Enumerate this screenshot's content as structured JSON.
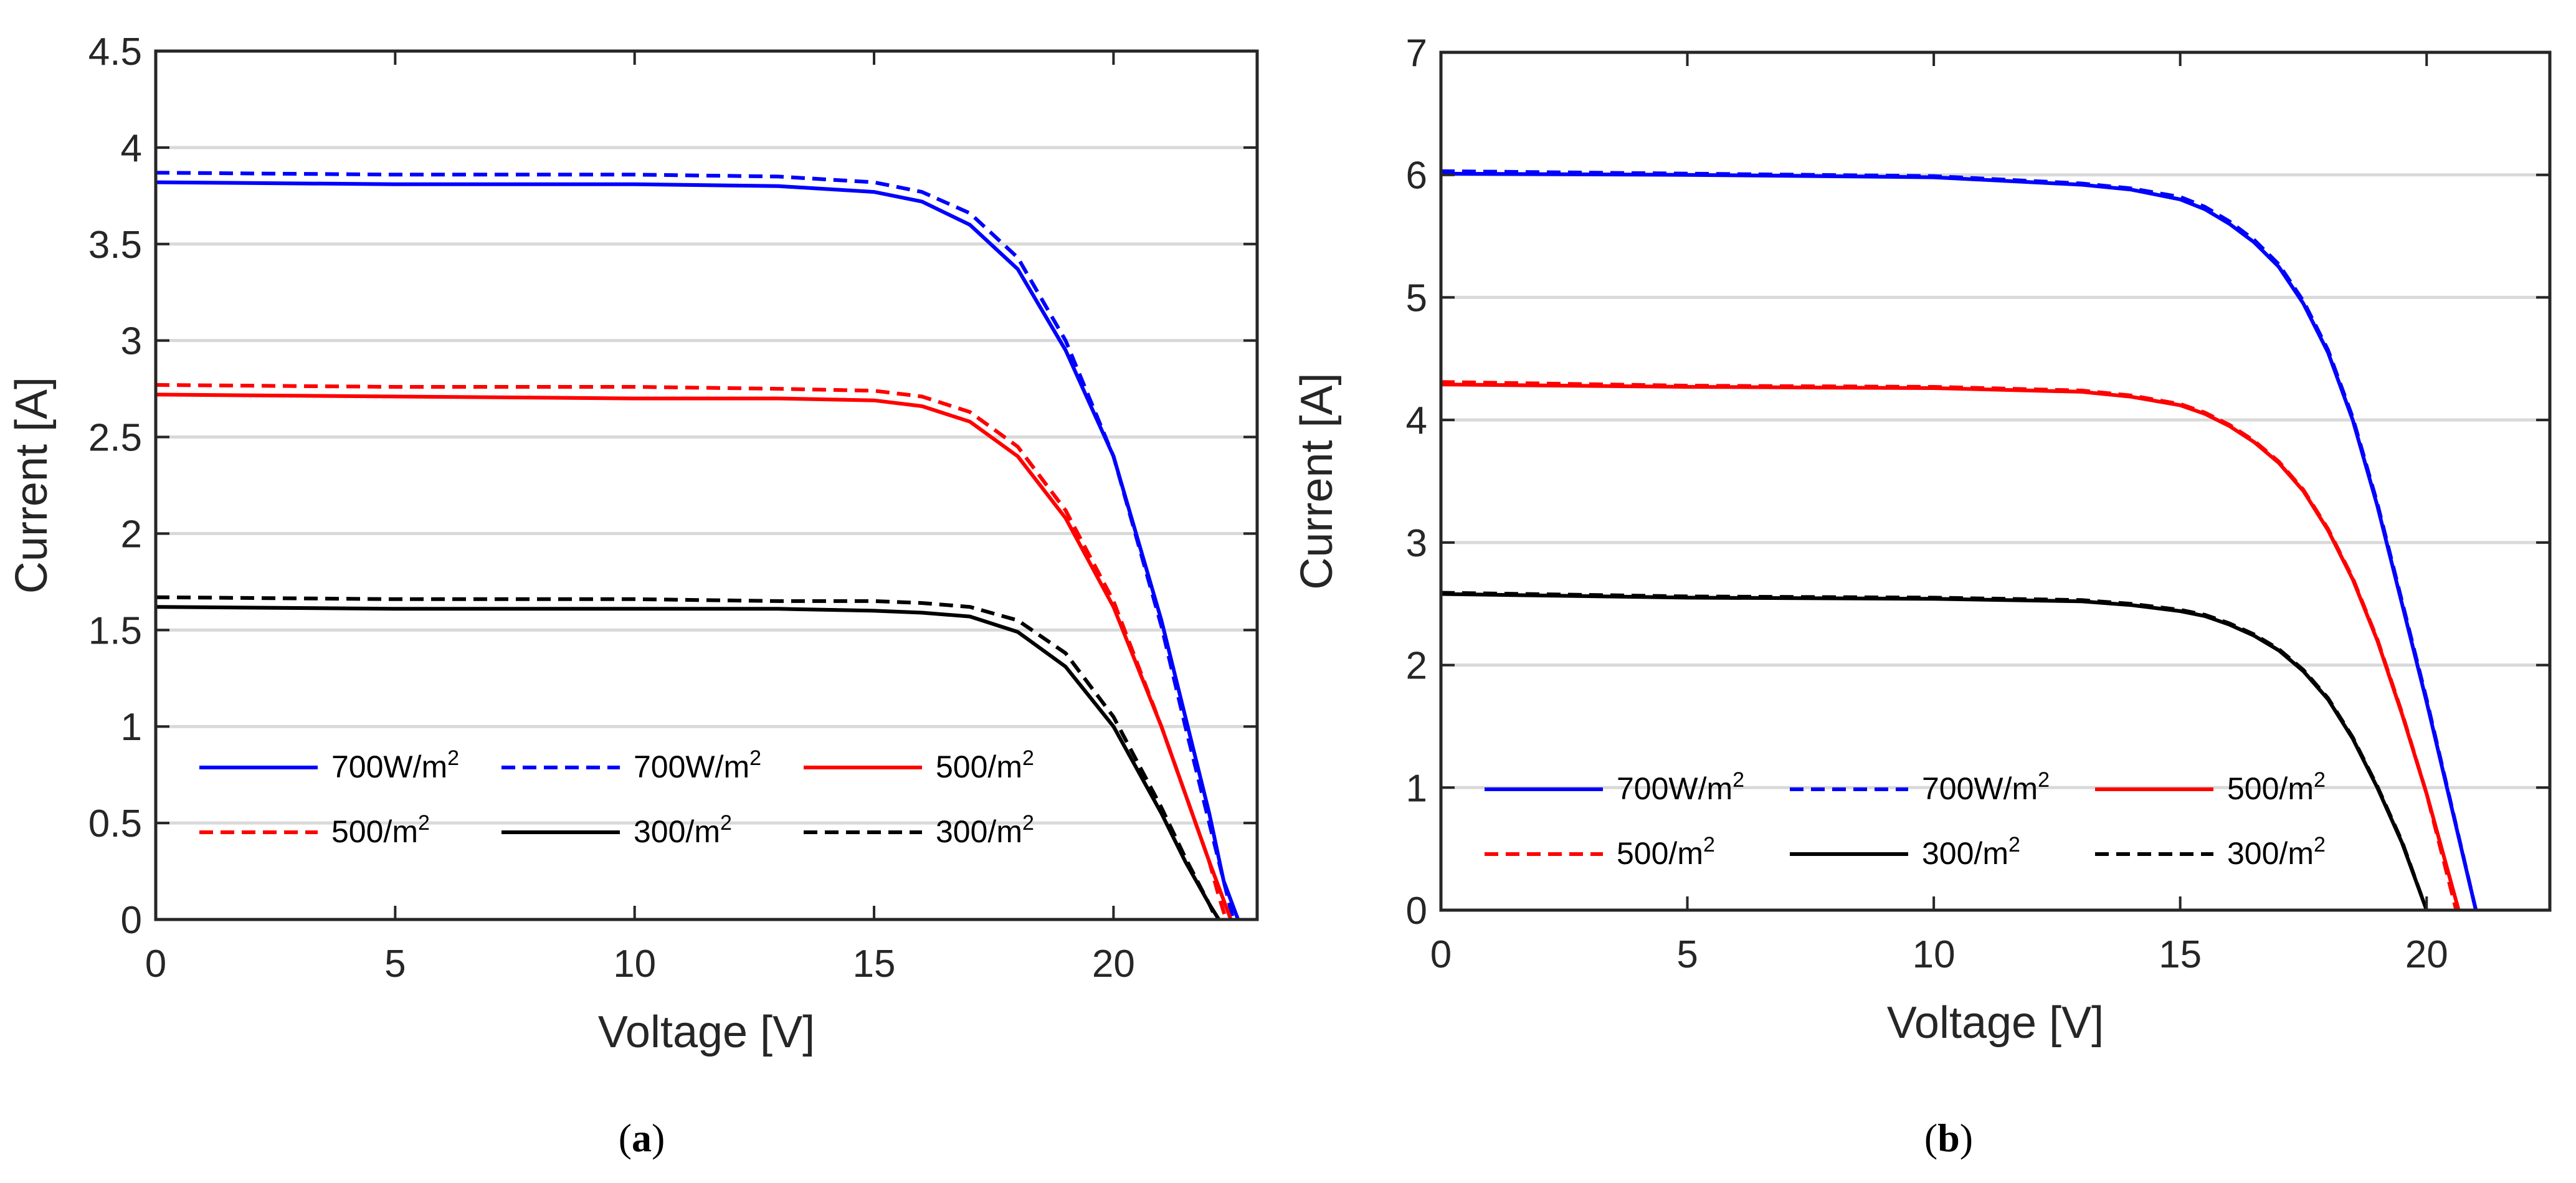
{
  "panels": [
    {
      "id": "a",
      "caption_open": "(",
      "caption_letter": "a",
      "caption_close": ")"
    },
    {
      "id": "b",
      "caption_open": "(",
      "caption_letter": "b",
      "caption_close": ")"
    }
  ],
  "chart_data": [
    {
      "type": "line",
      "panel": "a",
      "title": "",
      "xlabel": "Voltage [V]",
      "ylabel": "Current [A]",
      "xlim": [
        0,
        23
      ],
      "ylim": [
        0,
        4.5
      ],
      "xticks": [
        0,
        5,
        10,
        15,
        20
      ],
      "yticks": [
        0,
        0.5,
        1,
        1.5,
        2,
        2.5,
        3,
        3.5,
        4,
        4.5
      ],
      "grid": "horizontal",
      "legend_position": "bottom-left, inside axes, 3 columns",
      "series": [
        {
          "name": "700W/m2",
          "color": "#0000ff",
          "style": "solid",
          "x": [
            0,
            5,
            10,
            13,
            15,
            16,
            17,
            18,
            19,
            20,
            21,
            21.5,
            22,
            22.3,
            22.6
          ],
          "y": [
            3.82,
            3.81,
            3.81,
            3.8,
            3.77,
            3.72,
            3.6,
            3.37,
            2.95,
            2.4,
            1.55,
            1.05,
            0.55,
            0.2,
            0
          ]
        },
        {
          "name": "700W/m2",
          "color": "#0000ff",
          "style": "dashed",
          "x": [
            0,
            5,
            10,
            13,
            15,
            16,
            17,
            18,
            19,
            20,
            21,
            21.5,
            22,
            22.3,
            22.5
          ],
          "y": [
            3.87,
            3.86,
            3.86,
            3.85,
            3.82,
            3.77,
            3.66,
            3.43,
            3.0,
            2.4,
            1.52,
            1.0,
            0.5,
            0.2,
            0
          ]
        },
        {
          "name": "500/m2",
          "color": "#ff0000",
          "style": "solid",
          "x": [
            0,
            5,
            10,
            13,
            15,
            16,
            17,
            18,
            19,
            20,
            21,
            21.5,
            22,
            22.3,
            22.45
          ],
          "y": [
            2.72,
            2.71,
            2.7,
            2.7,
            2.69,
            2.66,
            2.58,
            2.4,
            2.08,
            1.62,
            1.0,
            0.65,
            0.3,
            0.1,
            0
          ]
        },
        {
          "name": "500/m2",
          "color": "#ff0000",
          "style": "dashed",
          "x": [
            0,
            5,
            10,
            13,
            15,
            16,
            17,
            18,
            19,
            20,
            21,
            21.5,
            22,
            22.2,
            22.35
          ],
          "y": [
            2.77,
            2.76,
            2.76,
            2.75,
            2.74,
            2.71,
            2.63,
            2.45,
            2.12,
            1.65,
            1.0,
            0.65,
            0.3,
            0.12,
            0
          ]
        },
        {
          "name": "300/m2",
          "color": "#000000",
          "style": "solid",
          "x": [
            0,
            5,
            10,
            13,
            15,
            16,
            17,
            18,
            19,
            20,
            21,
            21.5,
            22,
            22.2
          ],
          "y": [
            1.62,
            1.61,
            1.61,
            1.61,
            1.6,
            1.59,
            1.57,
            1.49,
            1.31,
            1.0,
            0.55,
            0.3,
            0.08,
            0
          ]
        },
        {
          "name": "300/m2",
          "color": "#000000",
          "style": "dashed",
          "x": [
            0,
            5,
            10,
            13,
            15,
            16,
            17,
            18,
            19,
            20,
            21,
            21.5,
            22,
            22.15
          ],
          "y": [
            1.67,
            1.66,
            1.66,
            1.65,
            1.65,
            1.64,
            1.62,
            1.55,
            1.38,
            1.05,
            0.58,
            0.32,
            0.08,
            0
          ]
        }
      ]
    },
    {
      "type": "line",
      "panel": "b",
      "title": "",
      "xlabel": "Voltage [V]",
      "ylabel": "Current [A]",
      "xlim": [
        0,
        22.5
      ],
      "ylim": [
        0,
        7
      ],
      "xticks": [
        0,
        5,
        10,
        15,
        20
      ],
      "yticks": [
        0,
        1,
        2,
        3,
        4,
        5,
        6,
        7
      ],
      "grid": "horizontal",
      "legend_position": "bottom-left, inside axes, 3 columns",
      "series": [
        {
          "name": "700W/m2",
          "color": "#0000ff",
          "style": "solid",
          "x": [
            0,
            5,
            10,
            13,
            14,
            15,
            15.5,
            16,
            16.5,
            17,
            17.5,
            18,
            18.5,
            19,
            19.5,
            20,
            20.5,
            21
          ],
          "y": [
            6.01,
            6.0,
            5.98,
            5.92,
            5.88,
            5.8,
            5.72,
            5.6,
            5.45,
            5.25,
            4.95,
            4.55,
            4.0,
            3.3,
            2.5,
            1.7,
            0.85,
            0
          ]
        },
        {
          "name": "700W/m2",
          "color": "#0000ff",
          "style": "dashed",
          "x": [
            0,
            5,
            10,
            13,
            14,
            15,
            15.5,
            16,
            16.5,
            17,
            17.5,
            18,
            18.5,
            19,
            19.5,
            20,
            20.5,
            21
          ],
          "y": [
            6.03,
            6.01,
            5.99,
            5.93,
            5.89,
            5.82,
            5.74,
            5.62,
            5.47,
            5.27,
            4.97,
            4.57,
            4.02,
            3.32,
            2.52,
            1.72,
            0.86,
            0
          ]
        },
        {
          "name": "500/m2",
          "color": "#ff0000",
          "style": "solid",
          "x": [
            0,
            5,
            10,
            13,
            14,
            15,
            15.5,
            16,
            16.5,
            17,
            17.5,
            18,
            18.5,
            19,
            19.5,
            20,
            20.65
          ],
          "y": [
            4.29,
            4.27,
            4.26,
            4.23,
            4.19,
            4.12,
            4.05,
            3.95,
            3.82,
            3.65,
            3.42,
            3.1,
            2.7,
            2.2,
            1.6,
            0.95,
            0
          ]
        },
        {
          "name": "500/m2",
          "color": "#ff0000",
          "style": "dashed",
          "x": [
            0,
            5,
            10,
            13,
            14,
            15,
            15.5,
            16,
            16.5,
            17,
            17.5,
            18,
            18.5,
            19,
            19.5,
            20,
            20.6
          ],
          "y": [
            4.31,
            4.28,
            4.27,
            4.24,
            4.2,
            4.13,
            4.06,
            3.96,
            3.83,
            3.66,
            3.43,
            3.11,
            2.71,
            2.21,
            1.61,
            0.95,
            0
          ]
        },
        {
          "name": "300/m2",
          "color": "#000000",
          "style": "solid",
          "x": [
            0,
            5,
            10,
            13,
            14,
            15,
            15.5,
            16,
            16.5,
            17,
            17.5,
            18,
            18.5,
            19,
            19.5,
            20
          ],
          "y": [
            2.58,
            2.55,
            2.54,
            2.52,
            2.49,
            2.44,
            2.4,
            2.33,
            2.24,
            2.12,
            1.95,
            1.72,
            1.4,
            1.0,
            0.55,
            0
          ]
        },
        {
          "name": "300/m2",
          "color": "#000000",
          "style": "dashed",
          "x": [
            0,
            5,
            10,
            13,
            14,
            15,
            15.5,
            16,
            16.5,
            17,
            17.5,
            18,
            18.5,
            19,
            19.5,
            20
          ],
          "y": [
            2.59,
            2.56,
            2.55,
            2.53,
            2.5,
            2.45,
            2.41,
            2.34,
            2.25,
            2.13,
            1.96,
            1.73,
            1.41,
            1.01,
            0.56,
            0
          ]
        }
      ]
    }
  ]
}
